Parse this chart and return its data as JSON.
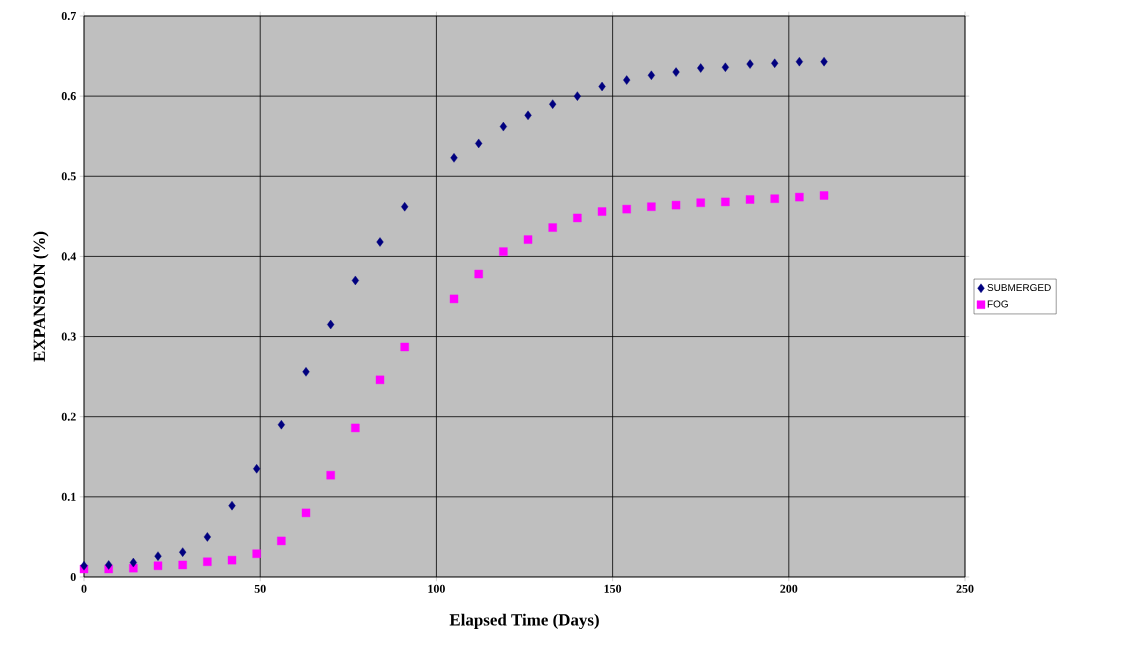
{
  "chart_data": {
    "type": "scatter",
    "xlabel": "Elapsed Time (Days)",
    "ylabel": "EXPANSION (%)",
    "xlim": [
      0,
      250
    ],
    "xticks": [
      0,
      50,
      100,
      150,
      200,
      250
    ],
    "ylim": [
      0,
      0.7
    ],
    "yticks": [
      0,
      0.1,
      0.2,
      0.3,
      0.4,
      0.5,
      0.6,
      0.7
    ],
    "grid": true,
    "legend": "right",
    "series": [
      {
        "name": "SUBMERGED",
        "color": "#00007f",
        "marker": "diamond",
        "x": [
          0,
          7,
          14,
          21,
          28,
          35,
          42,
          49,
          56,
          63,
          70,
          77,
          84,
          91,
          105,
          112,
          119,
          126,
          133,
          140,
          147,
          154,
          161,
          168,
          175,
          182,
          189,
          196,
          203,
          210
        ],
        "values": [
          0.014,
          0.015,
          0.018,
          0.026,
          0.031,
          0.05,
          0.089,
          0.135,
          0.19,
          0.256,
          0.315,
          0.37,
          0.418,
          0.462,
          0.523,
          0.541,
          0.562,
          0.576,
          0.59,
          0.6,
          0.612,
          0.62,
          0.626,
          0.63,
          0.635,
          0.636,
          0.64,
          0.641,
          0.643,
          0.643
        ]
      },
      {
        "name": "FOG",
        "color": "#ff00ff",
        "marker": "square",
        "x": [
          0,
          7,
          14,
          21,
          28,
          35,
          42,
          49,
          56,
          63,
          70,
          77,
          84,
          91,
          105,
          112,
          119,
          126,
          133,
          140,
          147,
          154,
          161,
          168,
          175,
          182,
          189,
          196,
          203,
          210
        ],
        "values": [
          0.01,
          0.01,
          0.011,
          0.014,
          0.015,
          0.019,
          0.021,
          0.029,
          0.045,
          0.08,
          0.127,
          0.186,
          0.246,
          0.287,
          0.347,
          0.378,
          0.406,
          0.421,
          0.436,
          0.448,
          0.456,
          0.459,
          0.462,
          0.464,
          0.467,
          0.468,
          0.471,
          0.472,
          0.474,
          0.476
        ]
      }
    ]
  }
}
